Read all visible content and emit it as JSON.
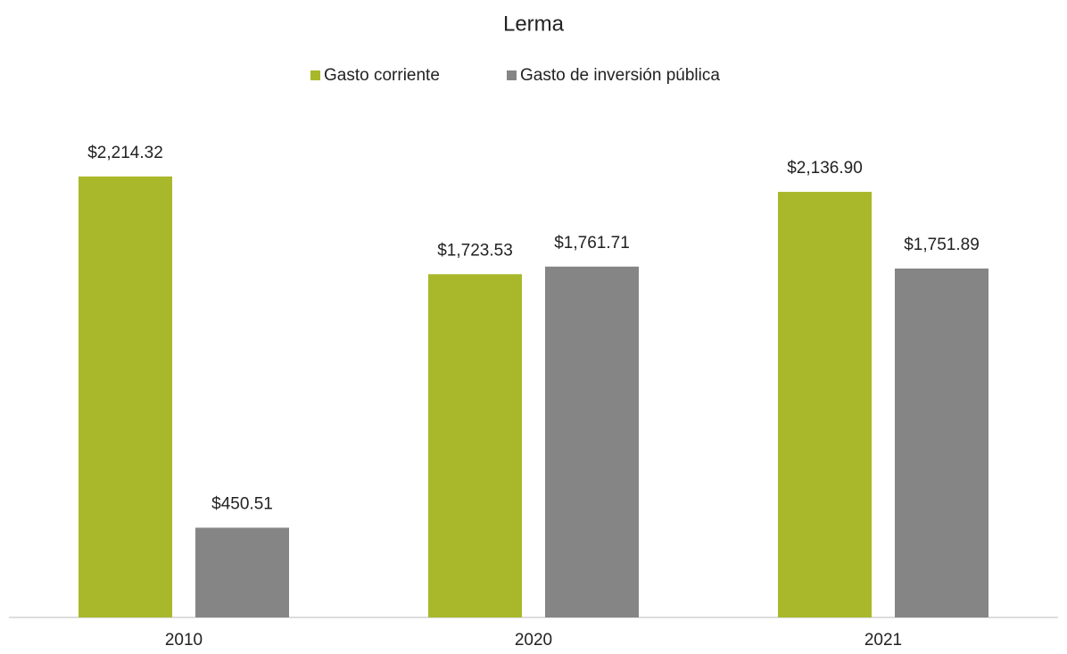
{
  "chart_data": {
    "type": "bar",
    "title": "Lerma",
    "categories": [
      "2010",
      "2020",
      "2021"
    ],
    "series": [
      {
        "name": "Gasto corriente",
        "color": "#a8b82a",
        "values": [
          2214.32,
          1723.53,
          2136.9
        ],
        "value_labels": [
          "$2,214.32",
          "$1,723.53",
          "$2,136.90"
        ]
      },
      {
        "name": "Gasto de inversión pública",
        "color": "#858585",
        "values": [
          450.51,
          1761.71,
          1751.89
        ],
        "value_labels": [
          "$450.51",
          "$1,761.71",
          "$1,751.89"
        ]
      }
    ],
    "ylim": [
      0,
      2500
    ],
    "legend": "top"
  }
}
